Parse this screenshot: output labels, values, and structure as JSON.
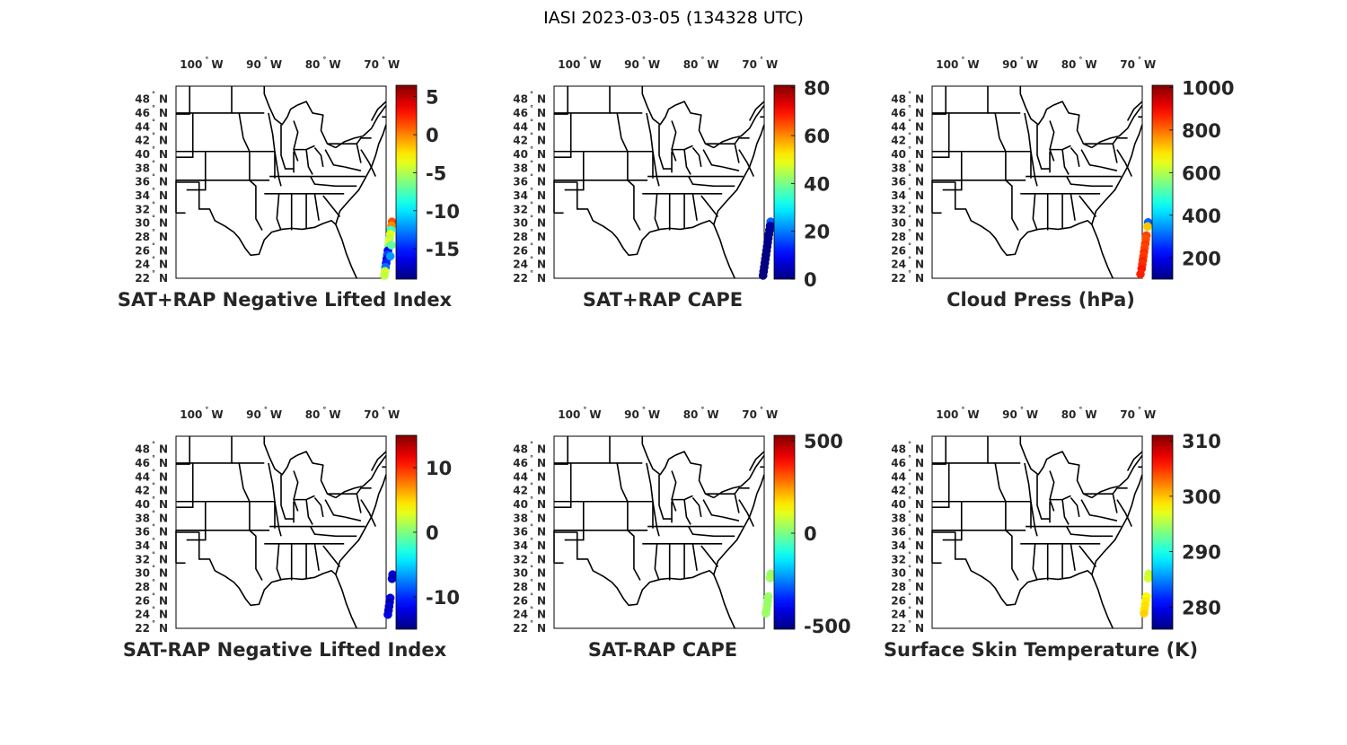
{
  "figure": {
    "title": "IASI 2023-03-05 (134328 UTC)",
    "longitude_ticks": [
      "100",
      "90",
      "80",
      "70"
    ],
    "longitude_suffix": "W",
    "latitude_ticks": [
      "48",
      "46",
      "44",
      "42",
      "40",
      "38",
      "36",
      "34",
      "32",
      "30",
      "28",
      "26",
      "24",
      "22"
    ],
    "latitude_suffix": "N",
    "degree_symbol": "°",
    "colormap": "jet"
  },
  "panels": [
    {
      "id": "sat-rap-nli",
      "title": "SAT+RAP Negative Lifted Index",
      "colorbar": {
        "min": -19,
        "max": 6.5,
        "ticks": [
          5,
          0,
          -5,
          -10,
          -15
        ],
        "labels": [
          "5",
          "0",
          "-5",
          "-10",
          "-15"
        ]
      },
      "points": [
        {
          "lon": -69.3,
          "lat": 30.2,
          "value": 1.5
        },
        {
          "lon": -69.4,
          "lat": 29.6,
          "value": 0.0
        },
        {
          "lon": -69.5,
          "lat": 29.0,
          "value": -8.0
        },
        {
          "lon": -69.6,
          "lat": 28.4,
          "value": -3.5
        },
        {
          "lon": -69.7,
          "lat": 27.8,
          "value": -4.5
        },
        {
          "lon": -69.8,
          "lat": 27.2,
          "value": -4.0
        },
        {
          "lon": -69.9,
          "lat": 26.6,
          "value": -6.0
        },
        {
          "lon": -70.0,
          "lat": 26.0,
          "value": -16.0
        },
        {
          "lon": -70.1,
          "lat": 25.4,
          "value": -14.0
        },
        {
          "lon": -70.2,
          "lat": 24.8,
          "value": -17.0
        },
        {
          "lon": -70.3,
          "lat": 24.2,
          "value": -15.0
        },
        {
          "lon": -70.4,
          "lat": 23.6,
          "value": -13.0
        },
        {
          "lon": -70.5,
          "lat": 23.0,
          "value": -4.0
        },
        {
          "lon": -70.6,
          "lat": 22.4,
          "value": -4.5
        },
        {
          "lon": -69.6,
          "lat": 25.2,
          "value": -12.0
        },
        {
          "lon": -69.4,
          "lat": 26.8,
          "value": -7.0
        }
      ]
    },
    {
      "id": "sat-rap-cape",
      "title": "SAT+RAP CAPE",
      "colorbar": {
        "min": 0,
        "max": 81,
        "ticks": [
          80,
          60,
          40,
          20,
          0
        ],
        "labels": [
          "80",
          "60",
          "40",
          "20",
          "0"
        ]
      },
      "points": [
        {
          "lon": -69.2,
          "lat": 30.2,
          "value": 18.0
        },
        {
          "lon": -69.3,
          "lat": 29.6,
          "value": 3.0
        },
        {
          "lon": -69.4,
          "lat": 29.0,
          "value": 2.0
        },
        {
          "lon": -69.5,
          "lat": 28.4,
          "value": 1.0
        },
        {
          "lon": -69.6,
          "lat": 27.8,
          "value": 1.0
        },
        {
          "lon": -69.7,
          "lat": 27.2,
          "value": 0.5
        },
        {
          "lon": -69.8,
          "lat": 26.6,
          "value": 0.5
        },
        {
          "lon": -69.9,
          "lat": 26.0,
          "value": 0.0
        },
        {
          "lon": -70.0,
          "lat": 25.4,
          "value": 0.0
        },
        {
          "lon": -70.1,
          "lat": 24.8,
          "value": 0.0
        },
        {
          "lon": -70.2,
          "lat": 24.2,
          "value": 0.0
        },
        {
          "lon": -70.3,
          "lat": 23.6,
          "value": 0.0
        },
        {
          "lon": -70.4,
          "lat": 23.0,
          "value": 0.0
        },
        {
          "lon": -70.5,
          "lat": 22.4,
          "value": 0.0
        }
      ]
    },
    {
      "id": "cloud-press",
      "title": "Cloud Press (hPa)",
      "colorbar": {
        "min": 100,
        "max": 1010,
        "ticks": [
          1000,
          800,
          600,
          400,
          200
        ],
        "labels": [
          "1000",
          "800",
          "600",
          "400",
          "200"
        ]
      },
      "points": [
        {
          "lon": -69.3,
          "lat": 30.1,
          "value": 300
        },
        {
          "lon": -69.4,
          "lat": 29.5,
          "value": 720
        },
        {
          "lon": -69.6,
          "lat": 28.2,
          "value": 840
        },
        {
          "lon": -69.7,
          "lat": 27.6,
          "value": 830
        },
        {
          "lon": -69.8,
          "lat": 27.0,
          "value": 850
        },
        {
          "lon": -69.9,
          "lat": 26.4,
          "value": 840
        },
        {
          "lon": -70.0,
          "lat": 25.8,
          "value": 860
        },
        {
          "lon": -70.1,
          "lat": 25.2,
          "value": 850
        },
        {
          "lon": -70.2,
          "lat": 24.6,
          "value": 870
        },
        {
          "lon": -70.3,
          "lat": 24.0,
          "value": 860
        },
        {
          "lon": -70.4,
          "lat": 23.4,
          "value": 880
        },
        {
          "lon": -70.6,
          "lat": 22.6,
          "value": 870
        }
      ]
    },
    {
      "id": "sat-minus-rap-nli",
      "title": "SAT-RAP Negative Lifted Index",
      "colorbar": {
        "min": -15,
        "max": 15,
        "ticks": [
          10,
          0,
          -10
        ],
        "labels": [
          "10",
          "0",
          "-10"
        ]
      },
      "points": [
        {
          "lon": -69.2,
          "lat": 29.8,
          "value": -12.5
        },
        {
          "lon": -69.3,
          "lat": 29.2,
          "value": -13.0
        },
        {
          "lon": -69.6,
          "lat": 26.4,
          "value": -12.0
        },
        {
          "lon": -69.7,
          "lat": 25.8,
          "value": -13.5
        },
        {
          "lon": -69.8,
          "lat": 25.2,
          "value": -12.5
        },
        {
          "lon": -69.9,
          "lat": 24.6,
          "value": -13.0
        },
        {
          "lon": -70.0,
          "lat": 24.0,
          "value": -12.0
        }
      ]
    },
    {
      "id": "sat-minus-rap-cape",
      "title": "SAT-RAP CAPE",
      "colorbar": {
        "min": -520,
        "max": 530,
        "ticks": [
          500,
          0,
          -500
        ],
        "labels": [
          "500",
          "0",
          "-500"
        ]
      },
      "points": [
        {
          "lon": -69.2,
          "lat": 29.9,
          "value": 30
        },
        {
          "lon": -69.3,
          "lat": 29.3,
          "value": 40
        },
        {
          "lon": -69.6,
          "lat": 26.6,
          "value": 35
        },
        {
          "lon": -69.7,
          "lat": 26.0,
          "value": 40
        },
        {
          "lon": -69.8,
          "lat": 25.4,
          "value": 30
        },
        {
          "lon": -69.9,
          "lat": 24.8,
          "value": 40
        },
        {
          "lon": -70.0,
          "lat": 24.2,
          "value": 35
        }
      ]
    },
    {
      "id": "surface-skin-temp",
      "title": "Surface Skin Temperature (K)",
      "colorbar": {
        "min": 276,
        "max": 311,
        "ticks": [
          310,
          300,
          290,
          280
        ],
        "labels": [
          "310",
          "300",
          "290",
          "280"
        ]
      },
      "points": [
        {
          "lon": -69.2,
          "lat": 29.9,
          "value": 296
        },
        {
          "lon": -69.3,
          "lat": 29.3,
          "value": 296.5
        },
        {
          "lon": -69.6,
          "lat": 26.6,
          "value": 298
        },
        {
          "lon": -69.7,
          "lat": 26.0,
          "value": 298.5
        },
        {
          "lon": -69.8,
          "lat": 25.4,
          "value": 299
        },
        {
          "lon": -69.9,
          "lat": 24.8,
          "value": 299
        },
        {
          "lon": -70.0,
          "lat": 24.2,
          "value": 299.5
        }
      ]
    }
  ]
}
